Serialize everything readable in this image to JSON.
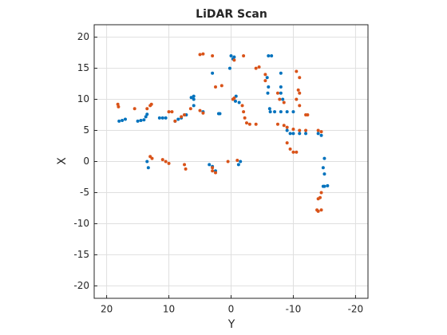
{
  "chart_data": {
    "type": "scatter",
    "title": "LiDAR Scan",
    "xlabel": "Y",
    "ylabel": "X",
    "xlim": [
      22,
      -22
    ],
    "ylim": [
      -22,
      22
    ],
    "xticks": [
      20,
      10,
      0,
      -10,
      -20
    ],
    "yticks": [
      -20,
      -15,
      -10,
      -5,
      0,
      5,
      10,
      15,
      20
    ],
    "grid": true,
    "series": [
      {
        "color": "#0072BD",
        "x": [
          18,
          17.5,
          17,
          15,
          14.5,
          14,
          13.7,
          13.5,
          11.5,
          11,
          10.5,
          9,
          8.5,
          8,
          7.5,
          7.2,
          6,
          6,
          6,
          4.5,
          3,
          2,
          1.8,
          0,
          -0.5,
          -0.3,
          0.2,
          -0.8,
          -0.7,
          -1.3,
          -6,
          -6.5,
          -5.8,
          -6,
          -5.9,
          -6.2,
          -6.3,
          -8,
          -8,
          -8,
          -8.3,
          -7,
          -8,
          -9,
          -10,
          -9,
          -9.5,
          -10,
          -11,
          -12,
          -14,
          -14.5,
          -15,
          -14.8,
          -15,
          -14.8,
          -15,
          -15.5,
          13.5,
          13.3,
          3.5,
          3,
          2.5,
          -1.5,
          -1.2,
          6.4
        ],
        "values": [
          6.5,
          6.6,
          6.8,
          6.5,
          6.6,
          6.7,
          7.2,
          7.6,
          7,
          7,
          7,
          6.5,
          6.8,
          7,
          7.5,
          7.5,
          9,
          10,
          10.5,
          8,
          14.2,
          7.7,
          7.7,
          17,
          16.8,
          16.5,
          15,
          10.5,
          9.7,
          9.5,
          17,
          17,
          13.5,
          12,
          11,
          8.5,
          8,
          14.2,
          12,
          11,
          10,
          8,
          8,
          8,
          8,
          5,
          4.5,
          4.5,
          4.5,
          4.5,
          4.5,
          4.2,
          0.5,
          -1,
          -2,
          -4,
          -4,
          -3.9,
          0,
          -1,
          -0.5,
          -0.8,
          -1.5,
          0,
          -0.5,
          10.3
        ]
      },
      {
        "color": "#D95319",
        "x": [
          18.2,
          18.1,
          15.5,
          13.5,
          13,
          12.8,
          10,
          9.5,
          8,
          7.5,
          9,
          6.5,
          5,
          4.5,
          2.5,
          1.5,
          -0.3,
          -0.5,
          -1.8,
          -2,
          -2.2,
          -2.5,
          -3,
          -4,
          -4,
          -4.5,
          -5.5,
          -5.5,
          -2,
          -0.5,
          4.5,
          5,
          3,
          -7.5,
          -7.8,
          -8.5,
          -7.5,
          -8.5,
          -9,
          -10,
          -11,
          -12,
          -9,
          -9.5,
          -10,
          -10.5,
          -10.5,
          -11,
          -10.8,
          -11,
          -10.5,
          -11,
          -12,
          -12.3,
          -14,
          -14.5,
          -14,
          -14.3,
          -14.5,
          -13.8,
          -14,
          -14.5,
          13,
          12.7,
          11,
          10.5,
          10,
          7.5,
          7.3,
          3,
          2.5,
          3,
          0.5,
          -1
        ],
        "values": [
          9.2,
          8.8,
          8.5,
          8.5,
          9,
          9.2,
          8,
          8,
          7.2,
          7.5,
          6.5,
          8.5,
          8.2,
          7.8,
          12,
          12.2,
          10,
          10.2,
          9,
          8,
          7,
          6.2,
          6,
          6,
          15,
          15.2,
          14,
          13,
          17,
          16.3,
          17.3,
          17.2,
          17,
          11,
          10,
          9.5,
          6,
          5.8,
          5.5,
          5.2,
          5,
          5,
          3,
          2,
          1.5,
          1.5,
          14.5,
          13.5,
          11.5,
          11,
          10,
          9,
          7.5,
          7.5,
          5,
          4.8,
          -6,
          -5.8,
          -5,
          -7.8,
          -8,
          -7.8,
          0.8,
          0.5,
          0.3,
          0,
          -0.3,
          -0.5,
          -1.2,
          -1,
          -1.8,
          -1.5,
          0,
          0.2
        ]
      }
    ]
  }
}
